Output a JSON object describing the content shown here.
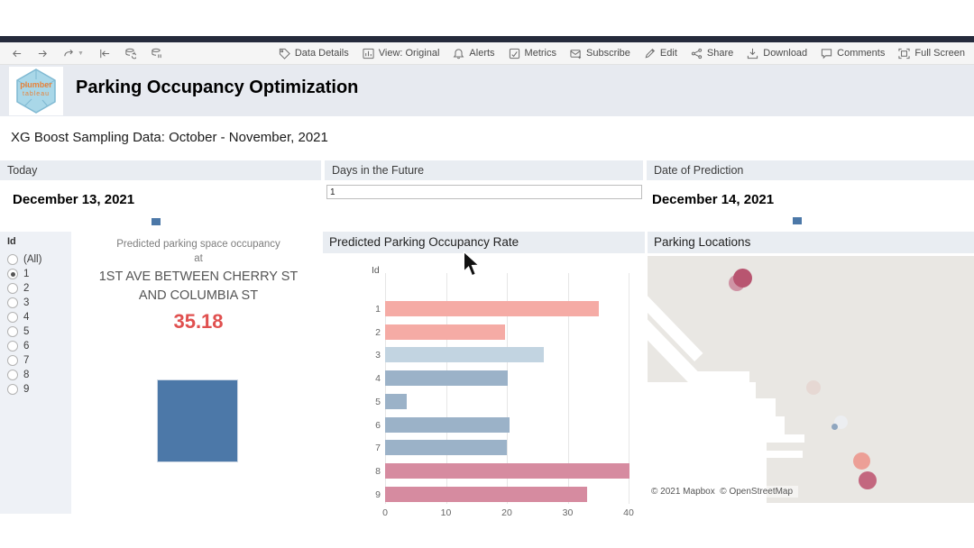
{
  "toolbar": {
    "left_icons": [
      "back",
      "forward",
      "redo",
      "revert",
      "refresh",
      "pause"
    ],
    "right_items": [
      {
        "icon": "tag",
        "label": "Data Details"
      },
      {
        "icon": "view",
        "label": "View: Original"
      },
      {
        "icon": "bell",
        "label": "Alerts"
      },
      {
        "icon": "metrics",
        "label": "Metrics"
      },
      {
        "icon": "envelope",
        "label": "Subscribe"
      },
      {
        "icon": "pencil",
        "label": "Edit"
      },
      {
        "icon": "share",
        "label": "Share"
      },
      {
        "icon": "download",
        "label": "Download"
      },
      {
        "icon": "comment",
        "label": "Comments"
      },
      {
        "icon": "fullscreen",
        "label": "Full Screen"
      }
    ]
  },
  "header": {
    "logo_line1": "plumber",
    "logo_line2": "tableau",
    "title": "Parking Occupancy Optimization"
  },
  "subtitle": "XG Boost Sampling Data: October - November, 2021",
  "filters": {
    "today": {
      "label": "Today",
      "value": "December 13, 2021"
    },
    "days_future": {
      "label": "Days in the Future",
      "value": "1"
    },
    "prediction": {
      "label": "Date of Prediction",
      "value": "December 14, 2021"
    },
    "mark_color": "#4c78a8"
  },
  "id_filter": {
    "title": "Id",
    "options": [
      "(All)",
      "1",
      "2",
      "3",
      "4",
      "5",
      "6",
      "7",
      "8",
      "9"
    ],
    "selected": "1"
  },
  "prediction_card": {
    "line1": "Predicted parking space occupancy",
    "line2": "at",
    "location": "1ST AVE BETWEEN CHERRY ST AND COLUMBIA ST",
    "value": "35.18",
    "value_color": "#e0504f",
    "mark_color": "#4c78a8"
  },
  "chart_data": {
    "type": "bar",
    "orientation": "horizontal",
    "title": "Predicted Parking Occupancy Rate",
    "ylabel": "Id",
    "categories": [
      "1",
      "2",
      "3",
      "4",
      "5",
      "6",
      "7",
      "8",
      "9"
    ],
    "values": [
      35.18,
      19.7,
      26.0,
      20.2,
      3.5,
      20.5,
      20.0,
      40.2,
      33.2
    ],
    "bar_colors": [
      "#f5aba5",
      "#f5aba5",
      "#c2d4e1",
      "#9bb2c8",
      "#9bb2c8",
      "#9bb2c8",
      "#9bb2c8",
      "#d68ba0",
      "#d68ba0"
    ],
    "x_ticks": [
      0,
      10,
      20,
      30,
      40
    ],
    "xlim": [
      0,
      42.5
    ],
    "grid": true,
    "legend": "none"
  },
  "map": {
    "title": "Parking Locations",
    "attribution": "© 2021 Mapbox  © OpenStreetMap",
    "points": [
      {
        "x": 99,
        "y": 30,
        "d": 18,
        "color": "#cf93a4"
      },
      {
        "x": 105,
        "y": 24,
        "d": 21,
        "color": "#b85570"
      },
      {
        "x": 184,
        "y": 146,
        "d": 16,
        "color": "#e6d8d3"
      },
      {
        "x": 214,
        "y": 184,
        "d": 15,
        "color": "#eceef1"
      },
      {
        "x": 207,
        "y": 189,
        "d": 7,
        "color": "#8fa6bf"
      },
      {
        "x": 237,
        "y": 227,
        "d": 19,
        "color": "#ec9f96"
      },
      {
        "x": 244,
        "y": 249,
        "d": 20,
        "color": "#c3677f"
      }
    ]
  }
}
